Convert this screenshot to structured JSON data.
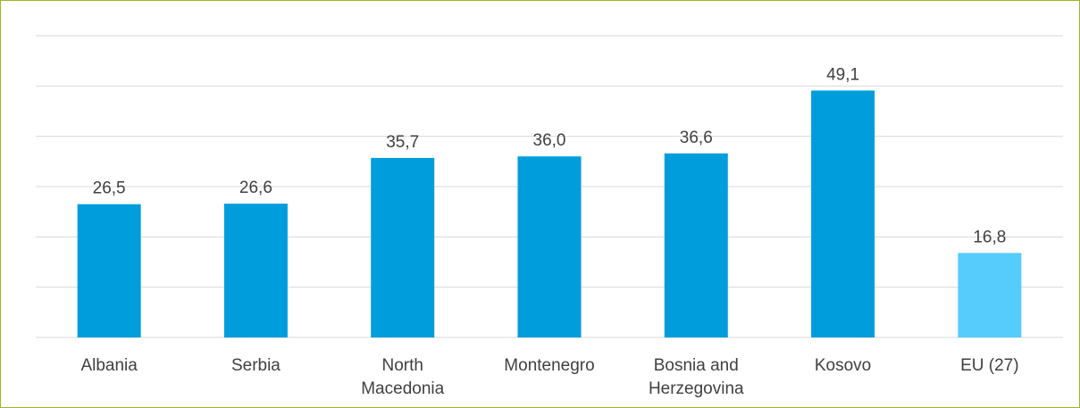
{
  "chart_data": {
    "type": "bar",
    "categories": [
      [
        "Albania"
      ],
      [
        "Serbia"
      ],
      [
        "North",
        "Macedonia"
      ],
      [
        "Montenegro"
      ],
      [
        "Bosnia and",
        "Herzegovina"
      ],
      [
        "Kosovo"
      ],
      [
        "EU (27)"
      ]
    ],
    "values": [
      "26,5",
      "26,6",
      "35,7",
      "36,0",
      "36,6",
      "49,1",
      "16,8"
    ],
    "ylim": [
      0,
      60
    ],
    "grid": true,
    "colors": {
      "bar": "#009ddc",
      "highlight_bar": "#55ccfb",
      "gridline": "#d9d9d9",
      "border": "#9bbb1f"
    },
    "highlight_index": 6
  }
}
